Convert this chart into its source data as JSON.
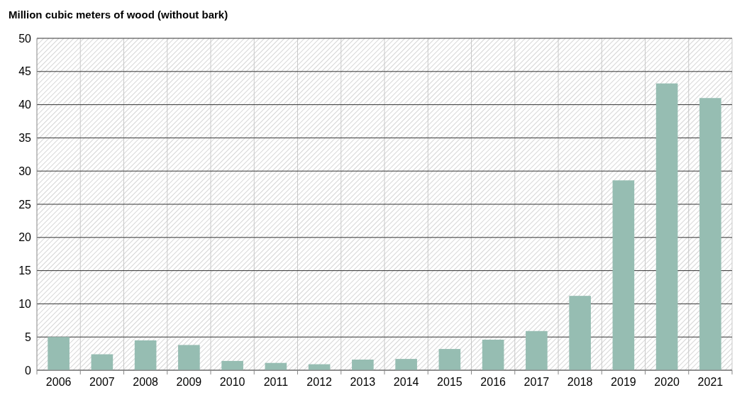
{
  "chart_data": {
    "type": "bar",
    "ylabel": "Million cubic meters of wood (without bark)",
    "categories": [
      "2006",
      "2007",
      "2008",
      "2009",
      "2010",
      "2011",
      "2012",
      "2013",
      "2014",
      "2015",
      "2016",
      "2017",
      "2018",
      "2019",
      "2020",
      "2021"
    ],
    "values": [
      5.0,
      2.4,
      4.5,
      3.8,
      1.4,
      1.1,
      0.9,
      1.6,
      1.7,
      3.2,
      4.6,
      5.9,
      11.2,
      28.6,
      43.2,
      41.0
    ],
    "color": "#96bdb2",
    "ylim": [
      0,
      50
    ],
    "yticks": [
      0,
      5,
      10,
      15,
      20,
      25,
      30,
      35,
      40,
      45,
      50
    ],
    "grid": true
  }
}
